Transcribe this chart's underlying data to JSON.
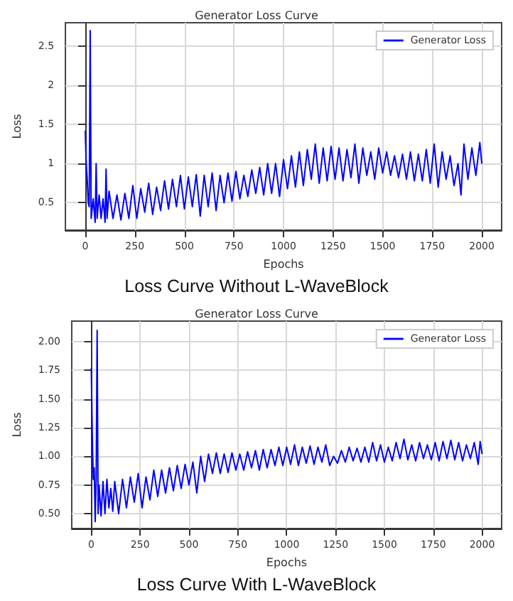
{
  "chart_data": [
    {
      "type": "line",
      "title": "Generator Loss Curve",
      "xlabel": "Epochs",
      "ylabel": "Loss",
      "annotations": [
        "Loss Curve Without L-WaveBlock"
      ],
      "xlim": [
        -100,
        2100
      ],
      "ylim": [
        0.15,
        2.8
      ],
      "xticks": [
        0,
        250,
        500,
        750,
        1000,
        1250,
        1500,
        1750,
        2000
      ],
      "yticks": [
        0.5,
        1.0,
        1.5,
        2.0,
        2.5
      ],
      "grid": true,
      "legend": "top right",
      "marker": "none",
      "line_style": "solid",
      "x": [
        0,
        5,
        10,
        15,
        20,
        25,
        30,
        40,
        50,
        55,
        60,
        70,
        80,
        90,
        100,
        105,
        110,
        120,
        140,
        160,
        180,
        200,
        220,
        240,
        260,
        280,
        300,
        320,
        340,
        360,
        380,
        400,
        420,
        440,
        460,
        480,
        500,
        520,
        540,
        560,
        580,
        600,
        620,
        640,
        660,
        680,
        700,
        720,
        740,
        760,
        780,
        800,
        820,
        840,
        860,
        880,
        900,
        920,
        940,
        960,
        980,
        1000,
        1020,
        1040,
        1060,
        1080,
        1100,
        1120,
        1140,
        1160,
        1180,
        1200,
        1220,
        1240,
        1260,
        1280,
        1300,
        1320,
        1340,
        1360,
        1380,
        1400,
        1420,
        1440,
        1460,
        1480,
        1500,
        1520,
        1540,
        1560,
        1580,
        1600,
        1620,
        1640,
        1660,
        1680,
        1700,
        1720,
        1740,
        1760,
        1780,
        1800,
        1820,
        1840,
        1860,
        1880,
        1895,
        1910,
        1930,
        1950,
        1970,
        1990,
        2000
      ],
      "series": [
        {
          "name": "Generator Loss",
          "color": "#0000ff",
          "values": [
            1.42,
            1.0,
            0.8,
            0.5,
            0.45,
            2.7,
            0.3,
            0.55,
            0.25,
            1.0,
            0.3,
            0.6,
            0.3,
            0.55,
            0.25,
            0.93,
            0.3,
            0.65,
            0.3,
            0.6,
            0.28,
            0.62,
            0.3,
            0.72,
            0.3,
            0.68,
            0.38,
            0.75,
            0.35,
            0.7,
            0.4,
            0.78,
            0.42,
            0.8,
            0.45,
            0.85,
            0.42,
            0.83,
            0.45,
            0.86,
            0.33,
            0.85,
            0.45,
            0.88,
            0.4,
            0.85,
            0.5,
            0.88,
            0.52,
            0.9,
            0.55,
            0.85,
            0.58,
            0.92,
            0.62,
            0.95,
            0.6,
            1.0,
            0.62,
            1.0,
            0.58,
            1.05,
            0.68,
            1.1,
            0.7,
            1.15,
            0.72,
            1.18,
            0.8,
            1.25,
            0.75,
            1.2,
            0.78,
            1.22,
            0.8,
            1.2,
            0.78,
            1.18,
            0.82,
            1.25,
            0.75,
            1.2,
            0.85,
            1.15,
            0.8,
            1.2,
            0.88,
            1.15,
            0.85,
            1.1,
            0.82,
            1.12,
            0.8,
            1.15,
            0.78,
            1.12,
            0.78,
            1.18,
            0.75,
            1.25,
            0.7,
            1.15,
            0.8,
            1.1,
            0.72,
            1.0,
            0.6,
            1.25,
            0.8,
            1.2,
            0.85,
            1.27,
            1.0
          ]
        }
      ]
    },
    {
      "type": "line",
      "title": "Generator Loss Curve",
      "xlabel": "Epochs",
      "ylabel": "Loss",
      "annotations": [
        "Loss Curve With L-WaveBlock"
      ],
      "xlim": [
        -100,
        2100
      ],
      "ylim": [
        0.37,
        2.18
      ],
      "xticks": [
        0,
        250,
        500,
        750,
        1000,
        1250,
        1500,
        1750,
        2000
      ],
      "yticks": [
        {
          "value": 0.5,
          "label": "0.50"
        },
        {
          "value": 0.75,
          "label": "0.75"
        },
        {
          "value": 1.0,
          "label": "1.00"
        },
        {
          "value": 1.25,
          "label": "1.25"
        },
        {
          "value": 1.5,
          "label": "1.50"
        },
        {
          "value": 1.75,
          "label": "1.75"
        },
        {
          "value": 2.0,
          "label": "2.00"
        }
      ],
      "grid": true,
      "legend": "top right",
      "marker": "none",
      "line_style": "solid",
      "x": [
        0,
        5,
        10,
        15,
        20,
        25,
        30,
        35,
        40,
        50,
        60,
        70,
        80,
        90,
        100,
        110,
        120,
        140,
        160,
        180,
        200,
        220,
        240,
        260,
        280,
        300,
        320,
        340,
        360,
        380,
        400,
        420,
        440,
        460,
        480,
        500,
        520,
        540,
        560,
        580,
        600,
        620,
        640,
        660,
        680,
        700,
        720,
        740,
        760,
        780,
        800,
        820,
        840,
        860,
        880,
        900,
        920,
        940,
        960,
        980,
        1000,
        1020,
        1040,
        1060,
        1080,
        1100,
        1120,
        1140,
        1160,
        1180,
        1200,
        1220,
        1240,
        1260,
        1280,
        1300,
        1320,
        1340,
        1360,
        1380,
        1400,
        1420,
        1440,
        1460,
        1480,
        1500,
        1520,
        1540,
        1560,
        1580,
        1600,
        1620,
        1640,
        1660,
        1680,
        1700,
        1720,
        1740,
        1760,
        1780,
        1800,
        1820,
        1840,
        1860,
        1880,
        1900,
        1920,
        1940,
        1960,
        1980,
        1990,
        2000
      ],
      "series": [
        {
          "name": "Generator Loss",
          "color": "#0000ff",
          "values": [
            1.77,
            1.2,
            0.8,
            0.9,
            0.43,
            0.8,
            2.1,
            0.5,
            0.75,
            0.48,
            0.78,
            0.5,
            0.8,
            0.55,
            0.72,
            0.52,
            0.78,
            0.5,
            0.8,
            0.55,
            0.82,
            0.6,
            0.85,
            0.55,
            0.82,
            0.62,
            0.88,
            0.65,
            0.88,
            0.68,
            0.9,
            0.7,
            0.92,
            0.72,
            0.93,
            0.75,
            0.95,
            0.68,
            1.0,
            0.78,
            1.02,
            0.85,
            1.03,
            0.85,
            1.02,
            0.86,
            1.03,
            0.88,
            1.02,
            0.88,
            1.04,
            0.9,
            1.05,
            0.88,
            1.06,
            0.9,
            1.06,
            0.92,
            1.08,
            0.92,
            1.08,
            0.93,
            1.1,
            0.92,
            1.08,
            0.94,
            1.09,
            0.93,
            1.08,
            0.95,
            1.1,
            0.92,
            1.0,
            0.94,
            1.05,
            0.95,
            1.08,
            0.96,
            1.07,
            0.95,
            1.08,
            0.95,
            1.12,
            0.96,
            1.1,
            0.95,
            1.08,
            0.96,
            1.12,
            0.98,
            1.15,
            0.97,
            1.1,
            0.96,
            1.12,
            0.98,
            1.1,
            0.97,
            1.12,
            0.96,
            1.13,
            0.98,
            1.14,
            0.97,
            1.12,
            0.96,
            1.1,
            0.98,
            1.12,
            0.93,
            1.13,
            1.02
          ]
        }
      ]
    }
  ]
}
